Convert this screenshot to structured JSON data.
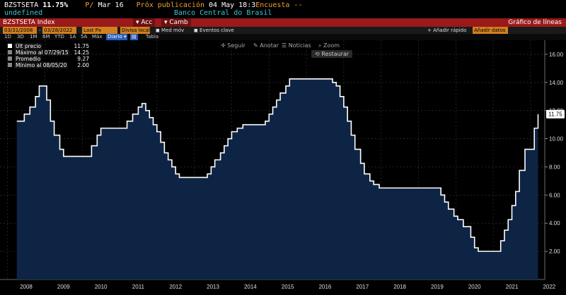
{
  "header": {
    "ticker": "BZSTSETA",
    "price": "11.75%",
    "change_prefix": "P/",
    "date": "Mar 16",
    "next_release_label": "Próx publicación",
    "next_release_date": "04 May 18:3",
    "survey_label": "Encuesta --",
    "sub_left": "undefined",
    "source": "Banco Central do Brasil"
  },
  "redbar": {
    "index_name": "BZSTSETA Index",
    "acc": "Acc",
    "camb": "Camb",
    "chart_type": "Gráfico de líneas"
  },
  "controls": {
    "start_date": "03/31/2008",
    "end_date": "03/28/2022",
    "field": "Last Px",
    "currency": "Divisa local",
    "moving_avg": "Med móv",
    "key_events": "Eventos clave",
    "quick_add": "Añadir rápido",
    "add_data": "Añadir datos"
  },
  "periods": [
    "1D",
    "3D",
    "1M",
    "6M",
    "YTD",
    "1A",
    "5A",
    "Máx",
    "Diario",
    "Tabla"
  ],
  "toolbar": {
    "follow": "Seguir",
    "annotate": "Anotar",
    "news": "Noticias",
    "zoom": "Zoom",
    "restore": "Restaurar"
  },
  "legend": [
    {
      "label": "Últ precio",
      "value": "11.75"
    },
    {
      "label": "Máximo al 07/29/15",
      "value": "14.25"
    },
    {
      "label": "Promedio",
      "value": "9.27"
    },
    {
      "label": "Mínimo al 08/05/20",
      "value": "2.00"
    }
  ],
  "last_value_tag": "11.75",
  "colors": {
    "line": "#ffffff",
    "fill": "#0e2444",
    "background": "#000000",
    "redbar": "#9a1a1a",
    "accent_orange": "#f0a030",
    "accent_cyan": "#36c8d8"
  },
  "chart_data": {
    "type": "area",
    "x": [
      2008.25,
      2008.45,
      2008.6,
      2008.75,
      2008.85,
      2008.95,
      2009.05,
      2009.15,
      2009.25,
      2009.4,
      2009.5,
      2009.6,
      2009.75,
      2010.1,
      2010.25,
      2010.4,
      2010.5,
      2010.6,
      2010.75,
      2011.1,
      2011.2,
      2011.35,
      2011.5,
      2011.6,
      2011.7,
      2011.8,
      2011.9,
      2012.0,
      2012.1,
      2012.2,
      2012.3,
      2012.4,
      2012.5,
      2012.6,
      2012.7,
      2012.8,
      2013.25,
      2013.35,
      2013.45,
      2013.55,
      2013.7,
      2013.8,
      2013.9,
      2014.0,
      2014.15,
      2014.3,
      2014.8,
      2014.9,
      2015.0,
      2015.1,
      2015.2,
      2015.3,
      2015.45,
      2015.55,
      2016.5,
      2016.7,
      2016.8,
      2016.9,
      2017.0,
      2017.1,
      2017.2,
      2017.3,
      2017.45,
      2017.55,
      2017.7,
      2017.8,
      2017.95,
      2018.1,
      2019.5,
      2019.6,
      2019.7,
      2019.8,
      2019.95,
      2020.05,
      2020.2,
      2020.4,
      2020.5,
      2020.6,
      2021.05,
      2021.2,
      2021.3,
      2021.4,
      2021.5,
      2021.6,
      2021.7,
      2021.75,
      2021.85,
      2021.95,
      2022.1,
      2022.2
    ],
    "y": [
      11.25,
      11.75,
      12.25,
      13.0,
      13.75,
      13.75,
      12.75,
      11.25,
      10.25,
      9.25,
      8.75,
      8.75,
      8.75,
      8.75,
      9.5,
      10.25,
      10.75,
      10.75,
      10.75,
      10.75,
      11.25,
      11.75,
      12.25,
      12.5,
      12.0,
      11.5,
      11.0,
      10.5,
      9.75,
      9.0,
      8.5,
      8.0,
      7.5,
      7.25,
      7.25,
      7.25,
      7.25,
      7.5,
      8.0,
      8.5,
      9.0,
      9.5,
      10.0,
      10.5,
      10.75,
      11.0,
      11.0,
      11.25,
      11.75,
      12.25,
      12.75,
      13.25,
      13.75,
      14.25,
      14.25,
      14.0,
      13.75,
      13.0,
      12.25,
      11.25,
      10.25,
      9.25,
      8.25,
      7.5,
      7.0,
      6.75,
      6.5,
      6.5,
      6.5,
      6.0,
      5.5,
      5.0,
      4.5,
      4.25,
      3.75,
      3.0,
      2.25,
      2.0,
      2.0,
      2.75,
      3.5,
      4.25,
      5.25,
      6.25,
      7.75,
      7.75,
      9.25,
      9.25,
      10.75,
      11.75
    ],
    "ylim": [
      0,
      17
    ],
    "xlim": [
      2007.8,
      2022.38
    ],
    "y_ticks": [
      "2.00",
      "4.00",
      "6.00",
      "8.00",
      "10.00",
      "12.00",
      "14.00",
      "16.00"
    ],
    "x_tick_labels": [
      "2008",
      "2009",
      "2010",
      "2011",
      "2012",
      "2013",
      "2014",
      "2015",
      "2016",
      "2017",
      "2018",
      "2019",
      "2020",
      "2021",
      "2022"
    ],
    "grid": true
  }
}
